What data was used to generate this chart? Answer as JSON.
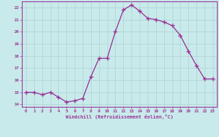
{
  "x": [
    0,
    1,
    2,
    3,
    4,
    5,
    6,
    7,
    8,
    9,
    10,
    11,
    12,
    13,
    14,
    15,
    16,
    17,
    18,
    19,
    20,
    21,
    22,
    23
  ],
  "y": [
    15.0,
    15.0,
    14.8,
    15.0,
    14.6,
    14.2,
    14.3,
    14.5,
    16.3,
    17.8,
    17.8,
    20.0,
    21.8,
    22.2,
    21.7,
    21.1,
    21.0,
    20.8,
    20.5,
    19.7,
    18.4,
    17.2,
    16.1,
    16.1
  ],
  "line_color": "#993399",
  "marker": "+",
  "marker_size": 4,
  "bg_color": "#c8eaea",
  "grid_color": "#b0d0d0",
  "xlabel": "Windchill (Refroidissement éolien,°C)",
  "xlabel_color": "#993399",
  "tick_color": "#993399",
  "ylim": [
    13.8,
    22.5
  ],
  "xlim": [
    -0.5,
    23.5
  ],
  "yticks": [
    14,
    15,
    16,
    17,
    18,
    19,
    20,
    21,
    22
  ],
  "xticks": [
    0,
    1,
    2,
    3,
    4,
    5,
    6,
    7,
    8,
    9,
    10,
    11,
    12,
    13,
    14,
    15,
    16,
    17,
    18,
    19,
    20,
    21,
    22,
    23
  ],
  "spine_color": "#993399",
  "linewidth": 1.0
}
